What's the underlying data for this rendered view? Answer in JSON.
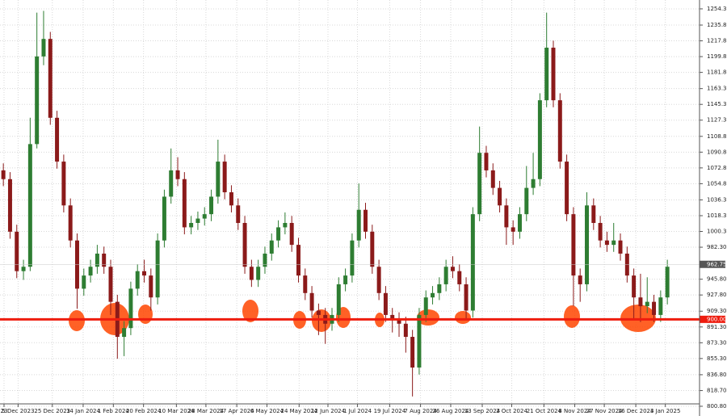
{
  "chart_data": {
    "type": "candlestick",
    "up_color": "#2e7d32",
    "down_color": "#8b1a1a",
    "level_color": "#ee1c0e",
    "grid": true,
    "xlim": [
      0,
      104.3
    ],
    "ylim": [
      789.7,
      1264.4
    ],
    "yticks": [
      {
        "value": 800.8,
        "label": "800.80"
      },
      {
        "value": 818.7,
        "label": "818.70"
      },
      {
        "value": 836.8,
        "label": "836.80"
      },
      {
        "value": 855.3,
        "label": "855.30"
      },
      {
        "value": 873.3,
        "label": "873.30"
      },
      {
        "value": 891.3,
        "label": "891.30"
      },
      {
        "value": 909.3,
        "label": "909.30"
      },
      {
        "value": 927.8,
        "label": "927.80"
      },
      {
        "value": 945.8,
        "label": "945.80"
      },
      {
        "value": 982.3,
        "label": "982.30"
      },
      {
        "value": 1000.3,
        "label": "1000.30"
      },
      {
        "value": 1018.3,
        "label": "1018.30"
      },
      {
        "value": 1036.3,
        "label": "1036.30"
      },
      {
        "value": 1054.8,
        "label": "1054.80"
      },
      {
        "value": 1072.8,
        "label": "1072.80"
      },
      {
        "value": 1090.8,
        "label": "1090.80"
      },
      {
        "value": 1108.8,
        "label": "1108.80"
      },
      {
        "value": 1127.3,
        "label": "1127.30"
      },
      {
        "value": 1145.3,
        "label": "1145.30"
      },
      {
        "value": 1163.3,
        "label": "1163.30"
      },
      {
        "value": 1181.8,
        "label": "1181.80"
      },
      {
        "value": 1199.8,
        "label": "1199.80"
      },
      {
        "value": 1217.8,
        "label": "1217.80"
      },
      {
        "value": 1235.8,
        "label": "1235.80"
      },
      {
        "value": 1254.3,
        "label": "1254.30"
      }
    ],
    "xticks": [
      {
        "value": 0.6,
        "label": "23"
      },
      {
        "value": 2.7,
        "label": "5 Dec 2023"
      },
      {
        "value": 7.8,
        "label": "25 Dec 2023"
      },
      {
        "value": 12.4,
        "label": "14 Jan 2024"
      },
      {
        "value": 16.9,
        "label": "1 Feb 2024"
      },
      {
        "value": 21.4,
        "label": "20 Feb 2024"
      },
      {
        "value": 26.3,
        "label": "10 Mar 2024"
      },
      {
        "value": 30.7,
        "label": "28 Mar 2024"
      },
      {
        "value": 35.3,
        "label": "17 Apr 2024"
      },
      {
        "value": 39.8,
        "label": "6 May 2024"
      },
      {
        "value": 44.6,
        "label": "24 May 2024"
      },
      {
        "value": 48.9,
        "label": "12 Jun 2024"
      },
      {
        "value": 53.3,
        "label": "1 Jul 2024"
      },
      {
        "value": 58.1,
        "label": "19 Jul 2024"
      },
      {
        "value": 62.7,
        "label": "7 Aug 2024"
      },
      {
        "value": 67.2,
        "label": "26 Aug 2024"
      },
      {
        "value": 71.9,
        "label": "13 Sep 2024"
      },
      {
        "value": 76.3,
        "label": "2 Oct 2024"
      },
      {
        "value": 81.1,
        "label": "21 Oct 2024"
      },
      {
        "value": 85.7,
        "label": "8 Nov 2024"
      },
      {
        "value": 90.1,
        "label": "27 Nov 2024"
      },
      {
        "value": 94.8,
        "label": "16 Dec 2024"
      },
      {
        "value": 99.2,
        "label": "3 Jan 2025"
      }
    ],
    "current_price": {
      "value": 962.75,
      "label": "962.75"
    },
    "level": {
      "value": 900,
      "label": "900.00"
    },
    "candles": [
      [
        1070,
        1078,
        1052,
        1060
      ],
      [
        1060,
        1068,
        992,
        1000
      ],
      [
        1000,
        1008,
        947,
        955
      ],
      [
        955,
        968,
        945,
        960
      ],
      [
        960,
        1130,
        955,
        1100
      ],
      [
        1100,
        1250,
        1095,
        1200
      ],
      [
        1200,
        1252,
        1190,
        1220
      ],
      [
        1220,
        1228,
        1122,
        1130
      ],
      [
        1130,
        1138,
        1072,
        1080
      ],
      [
        1080,
        1088,
        1022,
        1030
      ],
      [
        1030,
        1038,
        982,
        990
      ],
      [
        990,
        998,
        912,
        935
      ],
      [
        935,
        958,
        927,
        950
      ],
      [
        950,
        968,
        942,
        960
      ],
      [
        960,
        985,
        952,
        975
      ],
      [
        975,
        983,
        952,
        960
      ],
      [
        960,
        968,
        905,
        920
      ],
      [
        920,
        928,
        855,
        880
      ],
      [
        880,
        898,
        858,
        890
      ],
      [
        890,
        943,
        882,
        935
      ],
      [
        935,
        963,
        927,
        955
      ],
      [
        955,
        968,
        942,
        950
      ],
      [
        950,
        958,
        910,
        925
      ],
      [
        925,
        998,
        917,
        990
      ],
      [
        990,
        1048,
        982,
        1040
      ],
      [
        1040,
        1095,
        1032,
        1070
      ],
      [
        1070,
        1085,
        1052,
        1060
      ],
      [
        1060,
        1068,
        997,
        1005
      ],
      [
        1005,
        1018,
        997,
        1010
      ],
      [
        1010,
        1023,
        1002,
        1015
      ],
      [
        1015,
        1028,
        1007,
        1020
      ],
      [
        1020,
        1048,
        1012,
        1040
      ],
      [
        1040,
        1105,
        1032,
        1080
      ],
      [
        1080,
        1088,
        1037,
        1045
      ],
      [
        1045,
        1053,
        1022,
        1030
      ],
      [
        1030,
        1038,
        1002,
        1010
      ],
      [
        1010,
        1018,
        952,
        960
      ],
      [
        960,
        968,
        937,
        945
      ],
      [
        945,
        968,
        937,
        960
      ],
      [
        960,
        983,
        952,
        975
      ],
      [
        975,
        998,
        967,
        990
      ],
      [
        990,
        1013,
        982,
        1005
      ],
      [
        1005,
        1022,
        997,
        1010
      ],
      [
        1010,
        1018,
        977,
        985
      ],
      [
        985,
        993,
        942,
        950
      ],
      [
        950,
        958,
        922,
        930
      ],
      [
        930,
        938,
        902,
        910
      ],
      [
        910,
        918,
        882,
        905
      ],
      [
        905,
        913,
        872,
        895
      ],
      [
        895,
        913,
        887,
        905
      ],
      [
        905,
        948,
        897,
        940
      ],
      [
        940,
        958,
        932,
        950
      ],
      [
        950,
        998,
        942,
        990
      ],
      [
        990,
        1055,
        982,
        1025
      ],
      [
        1025,
        1033,
        992,
        1000
      ],
      [
        1000,
        1008,
        952,
        960
      ],
      [
        960,
        968,
        922,
        930
      ],
      [
        930,
        938,
        897,
        905
      ],
      [
        905,
        913,
        885,
        900
      ],
      [
        900,
        908,
        880,
        895
      ],
      [
        895,
        903,
        862,
        880
      ],
      [
        880,
        888,
        812,
        845
      ],
      [
        845,
        913,
        837,
        905
      ],
      [
        905,
        933,
        897,
        925
      ],
      [
        925,
        938,
        917,
        930
      ],
      [
        930,
        948,
        922,
        940
      ],
      [
        940,
        968,
        932,
        960
      ],
      [
        960,
        972,
        947,
        955
      ],
      [
        955,
        963,
        932,
        940
      ],
      [
        940,
        948,
        900,
        910
      ],
      [
        910,
        1028,
        902,
        1020
      ],
      [
        1020,
        1120,
        1012,
        1090
      ],
      [
        1090,
        1098,
        1062,
        1070
      ],
      [
        1070,
        1078,
        1042,
        1050
      ],
      [
        1050,
        1058,
        1022,
        1030
      ],
      [
        1030,
        1038,
        985,
        1005
      ],
      [
        1005,
        1013,
        985,
        1000
      ],
      [
        1000,
        1028,
        992,
        1020
      ],
      [
        1020,
        1075,
        1012,
        1050
      ],
      [
        1050,
        1090,
        1042,
        1060
      ],
      [
        1060,
        1158,
        1052,
        1150
      ],
      [
        1150,
        1250,
        1142,
        1210
      ],
      [
        1210,
        1218,
        1142,
        1150
      ],
      [
        1150,
        1158,
        1072,
        1080
      ],
      [
        1080,
        1088,
        1012,
        1020
      ],
      [
        1020,
        1028,
        915,
        950
      ],
      [
        950,
        958,
        920,
        940
      ],
      [
        940,
        1045,
        932,
        1030
      ],
      [
        1030,
        1038,
        1002,
        1010
      ],
      [
        1010,
        1018,
        982,
        990
      ],
      [
        990,
        1000,
        977,
        985
      ],
      [
        985,
        1010,
        977,
        990
      ],
      [
        990,
        998,
        967,
        975
      ],
      [
        975,
        983,
        942,
        950
      ],
      [
        950,
        958,
        900,
        925
      ],
      [
        925,
        952,
        897,
        915
      ],
      [
        915,
        948,
        907,
        920
      ],
      [
        920,
        928,
        897,
        905
      ],
      [
        905,
        933,
        897,
        925
      ],
      [
        925,
        968,
        917,
        960
      ]
    ]
  }
}
